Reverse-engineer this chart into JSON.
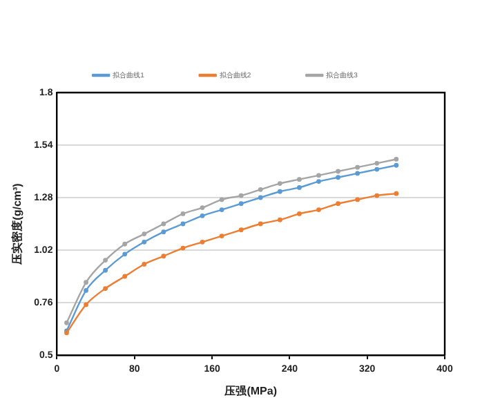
{
  "chart_data": {
    "type": "line",
    "xlabel": "压强(MPa)",
    "ylabel": "压实密度(g/cm³)",
    "x": [
      10,
      30,
      50,
      70,
      90,
      110,
      130,
      150,
      170,
      190,
      210,
      230,
      250,
      270,
      290,
      310,
      330,
      350
    ],
    "series": [
      {
        "name": "拟合曲线1",
        "color": "#5b9bd5",
        "values": [
          0.62,
          0.82,
          0.92,
          1.0,
          1.06,
          1.11,
          1.15,
          1.19,
          1.22,
          1.25,
          1.28,
          1.31,
          1.33,
          1.36,
          1.38,
          1.4,
          1.42,
          1.44
        ]
      },
      {
        "name": "拟合曲线2",
        "color": "#ed7d31",
        "values": [
          0.61,
          0.75,
          0.83,
          0.89,
          0.95,
          0.99,
          1.03,
          1.06,
          1.09,
          1.12,
          1.15,
          1.17,
          1.2,
          1.22,
          1.25,
          1.27,
          1.29,
          1.3
        ]
      },
      {
        "name": "拟合曲线3",
        "color": "#a5a5a5",
        "values": [
          0.66,
          0.86,
          0.97,
          1.05,
          1.1,
          1.15,
          1.2,
          1.23,
          1.27,
          1.29,
          1.32,
          1.35,
          1.37,
          1.39,
          1.41,
          1.43,
          1.45,
          1.47
        ]
      }
    ],
    "xlim": [
      0,
      400
    ],
    "xticks": [
      0,
      80,
      160,
      240,
      320,
      400
    ],
    "ylim": [
      0.5,
      1.8
    ],
    "yticks": [
      0.5,
      0.76,
      1.02,
      1.28,
      1.54,
      1.8
    ],
    "grid": "y",
    "legend": "top",
    "marker": "circle",
    "line_style": "solid"
  }
}
